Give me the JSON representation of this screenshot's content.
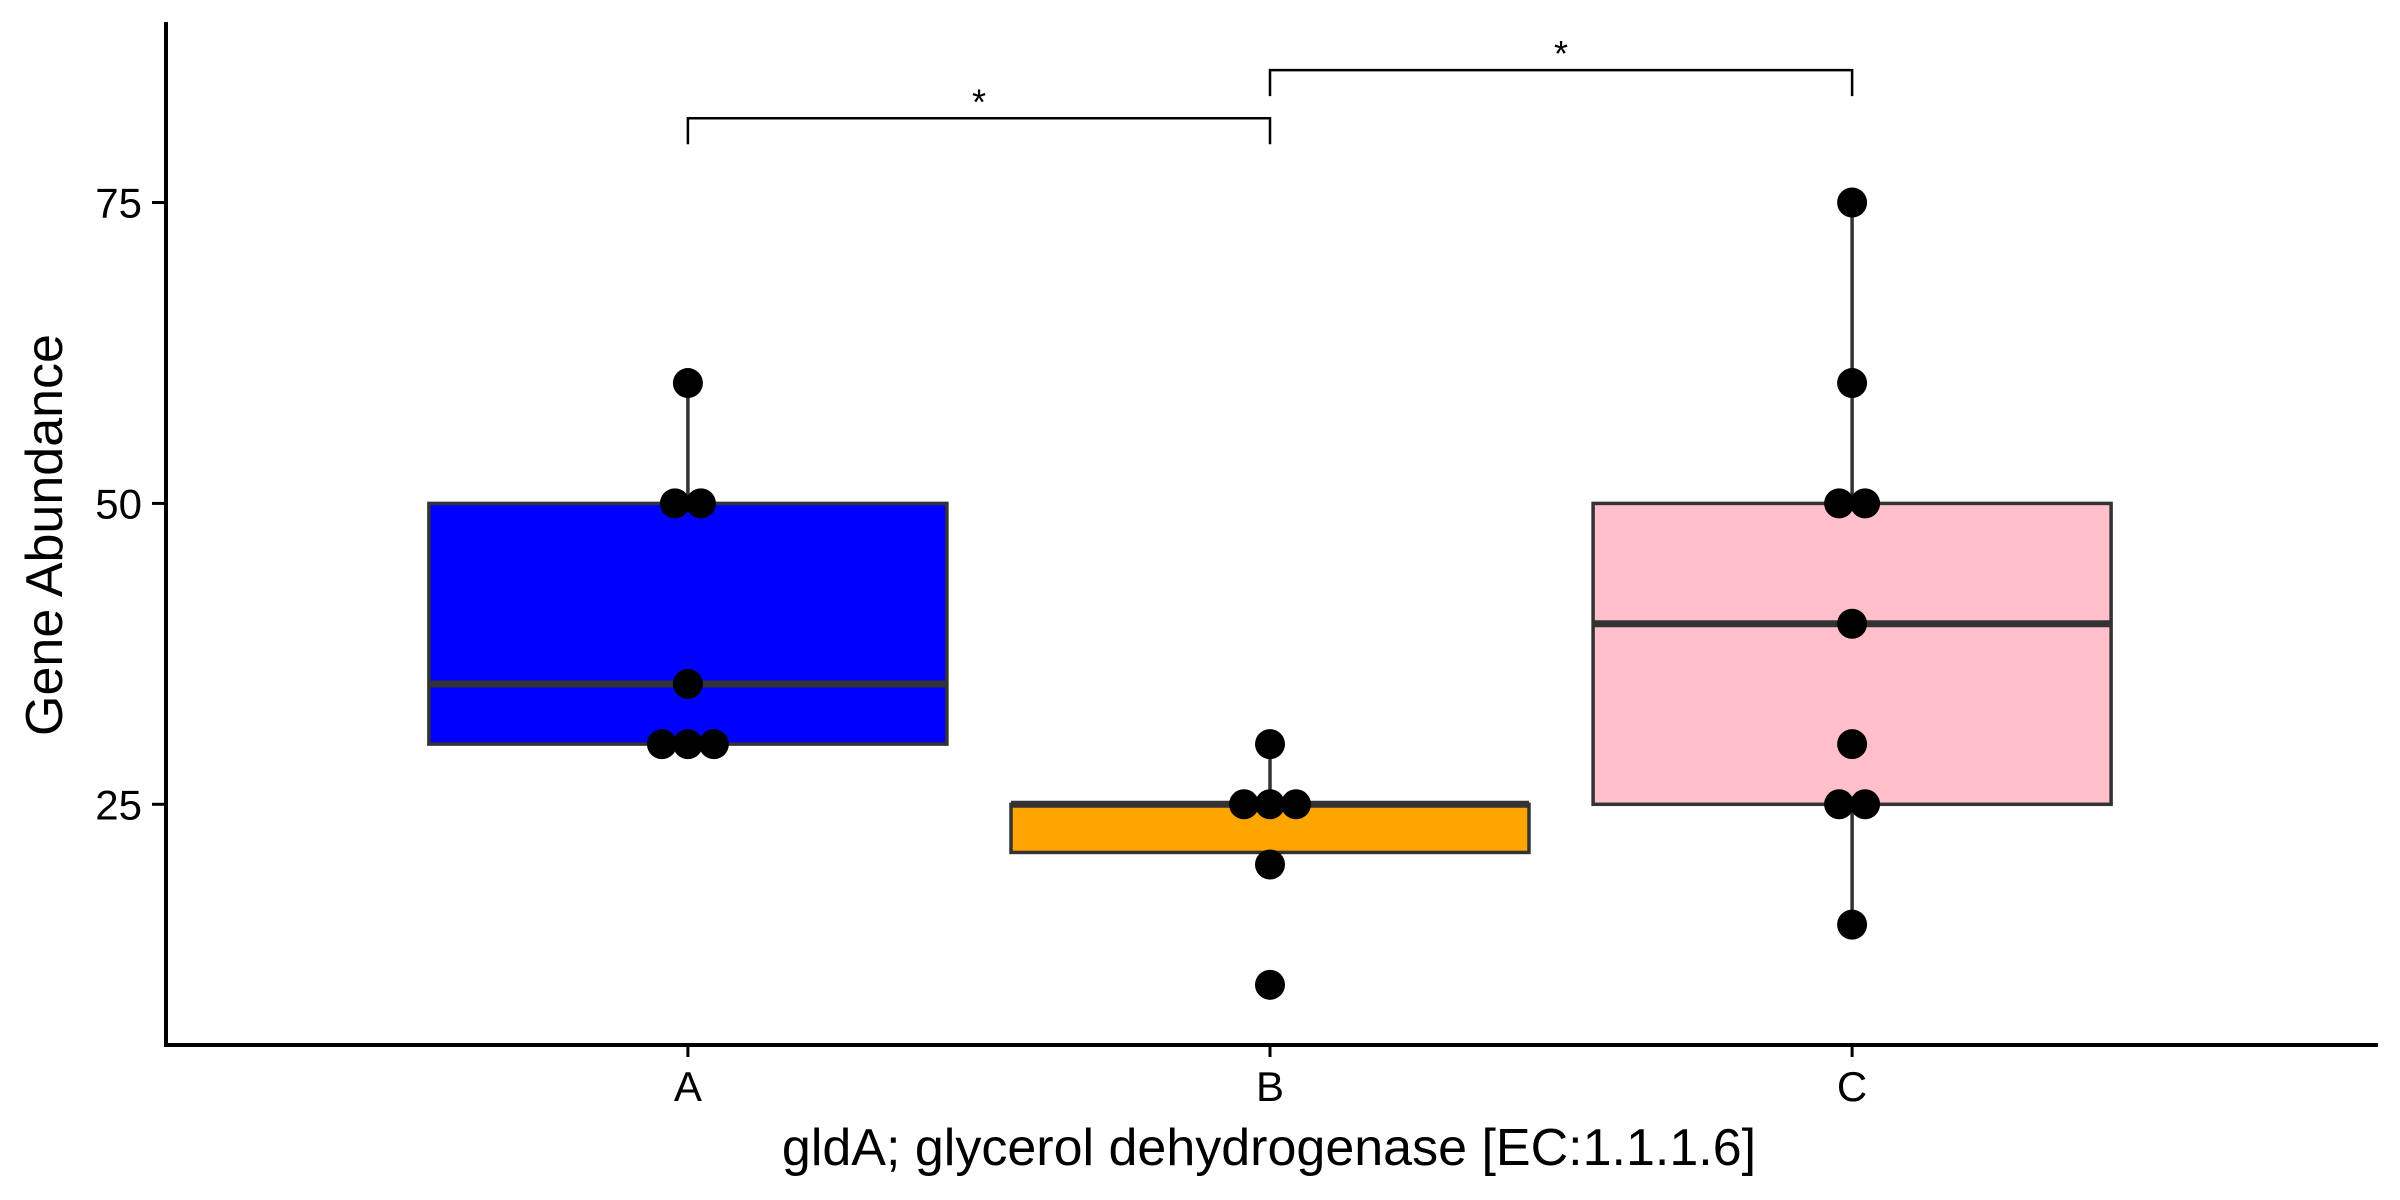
{
  "chart_data": {
    "type": "box",
    "xlabel": "gldA; glycerol dehydrogenase [EC:1.1.1.6]",
    "ylabel": "Gene Abundance",
    "ylim": [
      5,
      90
    ],
    "y_ticks": [
      25,
      50,
      75
    ],
    "grid": false,
    "categories": [
      "A",
      "B",
      "C"
    ],
    "colors": [
      "#0000ff",
      "#ffa500",
      "#ffc0cb"
    ],
    "boxes": [
      {
        "category": "A",
        "whisker_low": 30,
        "q1": 30,
        "median": 35,
        "q3": 50,
        "whisker_high": 60,
        "points": [
          30,
          30,
          30,
          35,
          50,
          50,
          60
        ]
      },
      {
        "category": "B",
        "whisker_low": 21,
        "q1": 21,
        "median": 25,
        "q3": 25,
        "whisker_high": 30,
        "points": [
          10,
          20,
          25,
          25,
          25,
          30
        ]
      },
      {
        "category": "C",
        "whisker_low": 15,
        "q1": 25,
        "median": 40,
        "q3": 50,
        "whisker_high": 75,
        "points": [
          15,
          25,
          25,
          30,
          40,
          50,
          50,
          60,
          75
        ]
      }
    ],
    "significance": [
      {
        "from": "A",
        "to": "B",
        "y": 82,
        "label": "*"
      },
      {
        "from": "B",
        "to": "C",
        "y": 86,
        "label": "*"
      }
    ]
  }
}
